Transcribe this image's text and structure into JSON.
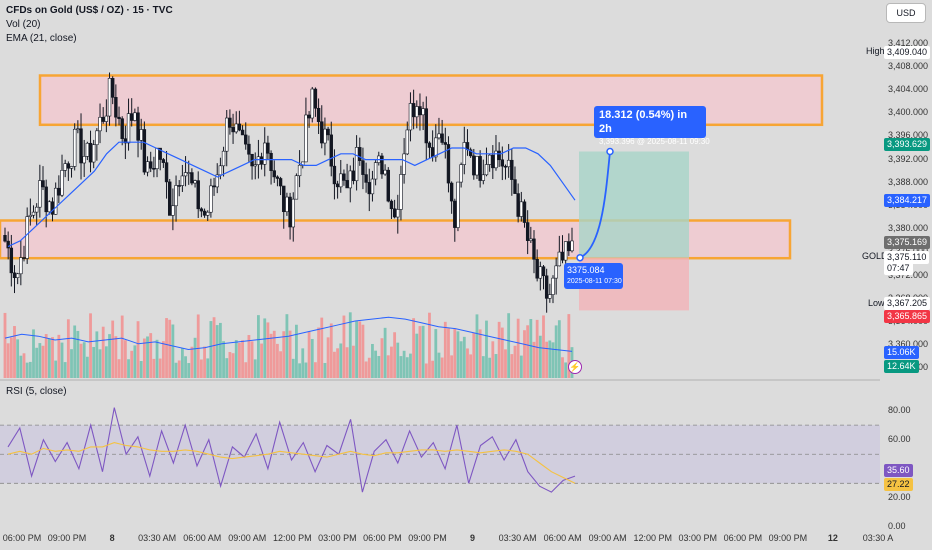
{
  "header": {
    "title": "CFDs on Gold (US$ / OZ) · 15 · TVC",
    "vol_legend": "Vol (20)",
    "ema_legend": "EMA (21, close)",
    "rsi_legend": "RSI (5, close)",
    "currency_button": "USD"
  },
  "chart_data": {
    "type": "candlestick",
    "price_axis_ticks": [
      "3,412.000",
      "3,408.000",
      "3,404.000",
      "3,400.000",
      "3,396.000",
      "3,392.000",
      "3,388.000",
      "3,384.000",
      "3,380.000",
      "3,376.000",
      "3,372.000",
      "3,368.000",
      "3,364.000",
      "3,360.000",
      "3,356.000"
    ],
    "rsi_axis_ticks": [
      "80.00",
      "60.00",
      "40.00",
      "20.00",
      "0.00"
    ],
    "x_axis_ticks": [
      {
        "label": "06:00 PM",
        "day": false
      },
      {
        "label": "09:00 PM",
        "day": false
      },
      {
        "label": "8",
        "day": true
      },
      {
        "label": "03:30 AM",
        "day": false
      },
      {
        "label": "06:00 AM",
        "day": false
      },
      {
        "label": "09:00 AM",
        "day": false
      },
      {
        "label": "12:00 PM",
        "day": false
      },
      {
        "label": "03:00 PM",
        "day": false
      },
      {
        "label": "06:00 PM",
        "day": false
      },
      {
        "label": "09:00 PM",
        "day": false
      },
      {
        "label": "9",
        "day": true
      },
      {
        "label": "03:30 AM",
        "day": false
      },
      {
        "label": "06:00 AM",
        "day": false
      },
      {
        "label": "09:00 AM",
        "day": false
      },
      {
        "label": "12:00 PM",
        "day": false
      },
      {
        "label": "03:00 PM",
        "day": false
      },
      {
        "label": "06:00 PM",
        "day": false
      },
      {
        "label": "09:00 PM",
        "day": false
      },
      {
        "label": "12",
        "day": true
      },
      {
        "label": "03:30 A",
        "day": false
      }
    ],
    "price_range": [
      3354,
      3414
    ],
    "rsi_range": [
      0,
      90
    ],
    "rsi_levels": [
      70,
      50,
      30
    ],
    "grid": false,
    "price_path": [
      3378,
      3372,
      3381,
      3387,
      3384,
      3391,
      3395,
      3392,
      3398,
      3404,
      3396,
      3401,
      3389,
      3394,
      3384,
      3392,
      3386,
      3382,
      3390,
      3400,
      3394,
      3389,
      3396,
      3388,
      3382,
      3392,
      3402,
      3396,
      3390,
      3386,
      3394,
      3388,
      3392,
      3382,
      3398,
      3404,
      3394,
      3398,
      3380,
      3396,
      3390,
      3394,
      3392,
      3388,
      3380,
      3372,
      3368,
      3374,
      3376
    ],
    "ema_path": [
      3377,
      3378,
      3380,
      3382,
      3384,
      3386,
      3388,
      3390,
      3393,
      3395,
      3395,
      3395,
      3394,
      3393,
      3392,
      3391,
      3390,
      3389,
      3390,
      3391,
      3392,
      3392,
      3392,
      3392,
      3391,
      3391,
      3392,
      3393,
      3393,
      3392,
      3392,
      3392,
      3392,
      3391,
      3392,
      3393,
      3394,
      3394,
      3393,
      3393,
      3393,
      3394,
      3394,
      3393,
      3391,
      3388,
      3385
    ],
    "rsi_path": [
      55,
      68,
      35,
      60,
      45,
      58,
      40,
      70,
      38,
      82,
      50,
      62,
      35,
      66,
      44,
      70,
      42,
      60,
      28,
      55,
      48,
      64,
      40,
      72,
      46,
      58,
      38,
      56,
      50,
      74,
      24,
      52,
      60,
      44,
      66,
      48,
      58,
      40,
      70,
      30,
      56,
      62,
      46,
      60,
      38,
      28,
      24,
      32,
      35
    ],
    "rsi_ma_path": [
      50,
      52,
      50,
      54,
      52,
      53,
      52,
      55,
      55,
      58,
      56,
      55,
      53,
      52,
      52,
      53,
      52,
      50,
      48,
      47,
      48,
      49,
      50,
      52,
      51,
      50,
      49,
      48,
      50,
      52,
      50,
      49,
      51,
      51,
      52,
      53,
      53,
      52,
      53,
      52,
      51,
      52,
      53,
      52,
      50,
      44,
      38,
      34,
      30
    ],
    "volume_ma_path": [
      0.42,
      0.46,
      0.44,
      0.4,
      0.42,
      0.38,
      0.4,
      0.42,
      0.36,
      0.38,
      0.34,
      0.3,
      0.32,
      0.36,
      0.38,
      0.4,
      0.42,
      0.44,
      0.48,
      0.52,
      0.56,
      0.6,
      0.62,
      0.64,
      0.62,
      0.58,
      0.54,
      0.52,
      0.48,
      0.44,
      0.4,
      0.36,
      0.32,
      0.3,
      0.28
    ],
    "zones": [
      {
        "name": "resistance-zone",
        "top": 3406.5,
        "bottom": 3398.0
      },
      {
        "name": "support-zone",
        "top": 3381.5,
        "bottom": 3375.0
      }
    ],
    "projection": {
      "entry": 3375.084,
      "entry_date": "2025-08-11 07:30",
      "target": 3393.396,
      "target_date": "2025-08-11 09:30",
      "stop": 3366.0,
      "change_label": "18.312 (0.54%) in 2h",
      "target_detail": "3,393.396 @ 2025-08-11 09:30"
    },
    "price_labels": {
      "high_label": "High",
      "high_value": "3,409.040",
      "target_price": "3,393.629",
      "ema_value": "3,384.217",
      "last_price": "3,375.169",
      "symbol_label": "GOLD",
      "symbol_price": "3,375.110",
      "countdown": "07:47",
      "low_label": "Low",
      "low_value": "3,367.205",
      "stop_price": "3,365.865",
      "vol_value_1": "15.06K",
      "vol_value_2": "12.64K",
      "rsi_value": "35.60",
      "rsi_ma_value": "27.22"
    },
    "colors": {
      "up": "#ffffff",
      "down": "#131722",
      "ema": "#2962ff",
      "zone_fill": "#f4c7cf",
      "zone_border": "#f7a534",
      "vol_up": "#7fc4b5",
      "vol_down": "#ef9a9a",
      "rsi": "#7e57c2",
      "rsi_ma": "#f5c242",
      "target_box": "#a8d5c8",
      "stop_box": "#f3b3b8"
    }
  }
}
